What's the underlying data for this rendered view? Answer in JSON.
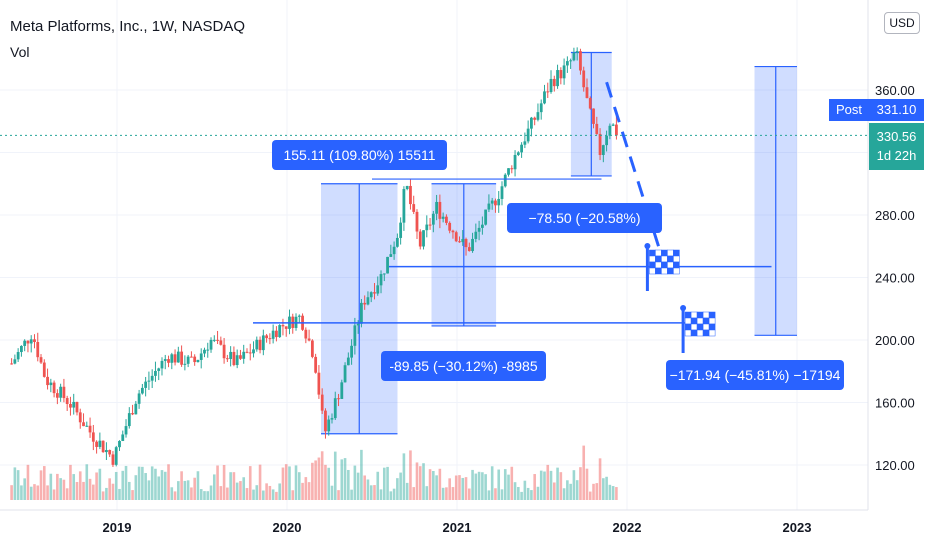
{
  "header": {
    "title": "Meta Platforms, Inc., 1W, NASDAQ",
    "volume_label": "Vol",
    "currency": "USD"
  },
  "price_axis": {
    "ticks": [
      "360.00",
      "320.00",
      "280.00",
      "240.00",
      "200.00",
      "160.00",
      "120.00"
    ],
    "post_label": "Post",
    "post_price": "331.10",
    "current_price": "330.56",
    "countdown": "1d 22h"
  },
  "time_axis": {
    "ticks": [
      "2019",
      "2020",
      "2021",
      "2022",
      "2023"
    ]
  },
  "measurements": [
    {
      "label": "155.11 (109.80%) 15511"
    },
    {
      "label": "−78.50 (−20.58%) −7850"
    },
    {
      "label": "-89.85 (−30.12%) -8985"
    },
    {
      "label": "−171.94 (−45.81%) −17194"
    }
  ],
  "colors": {
    "up": "#26a69a",
    "down": "#ef5350",
    "accent": "#2962ff",
    "range_fill": "#c9d7f8"
  },
  "chart_data": {
    "type": "candlestick",
    "title": "Meta Platforms, Inc., 1W, NASDAQ",
    "ylim": [
      100,
      400
    ],
    "key_points": [
      {
        "date": "2018-06",
        "price": 205
      },
      {
        "date": "2018-12",
        "price": 124
      },
      {
        "date": "2019-07",
        "price": 200
      },
      {
        "date": "2020-03",
        "price": 137
      },
      {
        "date": "2020-09",
        "price": 300
      },
      {
        "date": "2021-01",
        "price": 257
      },
      {
        "date": "2021-09",
        "price": 384
      },
      {
        "date": "2021-11",
        "price": 331
      }
    ],
    "current_price": 330.56,
    "post_price": 331.1
  }
}
